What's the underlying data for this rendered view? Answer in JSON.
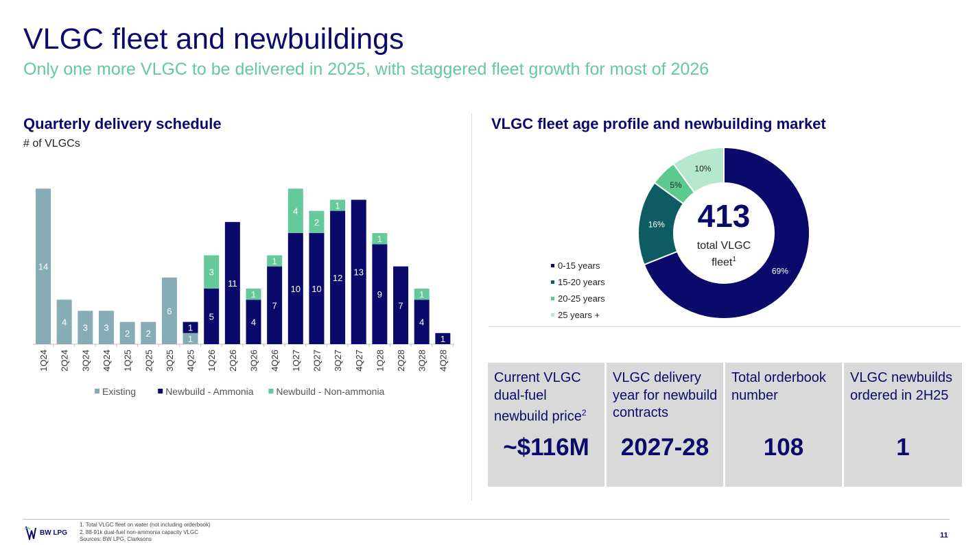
{
  "header": {
    "title": "VLGC fleet and newbuildings",
    "subtitle": "Only one more VLGC to be delivered in 2025, with staggered fleet growth for most of 2026"
  },
  "left": {
    "section_title": "Quarterly delivery schedule",
    "unit_label": "# of VLGCs"
  },
  "right": {
    "section_title": "VLGC fleet age profile and newbuilding market",
    "donut_center_number": "413",
    "donut_center_label": "total VLGC fleet",
    "donut_center_footnote": "1"
  },
  "colors": {
    "title": "#0a0a6b",
    "subtitle": "#66c99a",
    "existing": "#86adb6",
    "ammonia": "#0a0a6b",
    "non_ammonia": "#66c99a",
    "age_0_15": "#0a0a6b",
    "age_15_20": "#0d5c63",
    "age_20_25": "#5dc98f",
    "age_25_plus": "#b5e8cc"
  },
  "chart_data": [
    {
      "type": "bar",
      "stacked": true,
      "title": "Quarterly delivery schedule",
      "ylabel": "# of VLGCs",
      "ylim": [
        0,
        14
      ],
      "categories": [
        "1Q24",
        "2Q24",
        "3Q24",
        "4Q24",
        "1Q25",
        "2Q25",
        "3Q25",
        "4Q25",
        "1Q26",
        "2Q26",
        "3Q26",
        "4Q26",
        "1Q27",
        "2Q27",
        "3Q27",
        "4Q27",
        "1Q28",
        "2Q28",
        "3Q28",
        "4Q28"
      ],
      "series": [
        {
          "name": "Existing",
          "color": "#86adb6",
          "values": [
            14,
            4,
            3,
            3,
            2,
            2,
            6,
            1,
            0,
            0,
            0,
            0,
            0,
            0,
            0,
            0,
            0,
            0,
            0,
            0
          ]
        },
        {
          "name": "Newbuild - Ammonia",
          "color": "#0a0a6b",
          "values": [
            0,
            0,
            0,
            0,
            0,
            0,
            0,
            1,
            5,
            11,
            4,
            7,
            10,
            10,
            12,
            13,
            9,
            7,
            4,
            1
          ]
        },
        {
          "name": "Newbuild - Non-ammonia",
          "color": "#66c99a",
          "values": [
            0,
            0,
            0,
            0,
            0,
            0,
            0,
            0,
            3,
            0,
            1,
            1,
            4,
            2,
            1,
            0,
            1,
            0,
            1,
            0
          ]
        }
      ],
      "legend_position": "bottom"
    },
    {
      "type": "pie",
      "donut": true,
      "title": "VLGC fleet age profile and newbuilding market",
      "categories": [
        "0-15 years",
        "15-20 years",
        "20-25 years",
        "25 years +"
      ],
      "values": [
        69,
        16,
        5,
        10
      ],
      "labels": [
        "69%",
        "16%",
        "5%",
        "10%"
      ],
      "colors": [
        "#0a0a6b",
        "#0d5c63",
        "#5dc98f",
        "#b5e8cc"
      ],
      "legend_position": "left"
    }
  ],
  "tiles": [
    {
      "label": "Current VLGC dual-fuel newbuild price",
      "footnote": "2",
      "value": "~$116M"
    },
    {
      "label": "VLGC delivery year for newbuild contracts",
      "footnote": "",
      "value": "2027-28"
    },
    {
      "label": "Total orderbook number",
      "footnote": "",
      "value": "108"
    },
    {
      "label": "VLGC newbuilds ordered in 2H25",
      "footnote": "",
      "value": "1"
    }
  ],
  "footer": {
    "logo_text": "BW LPG",
    "footnotes": [
      "1.    Total VLGC fleet on water (not including orderbook)",
      "2.    88-91k dual-fuel non-ammonia capacity VLGC",
      "Sources: BW LPG, Clarksons"
    ],
    "page_number": "11"
  }
}
